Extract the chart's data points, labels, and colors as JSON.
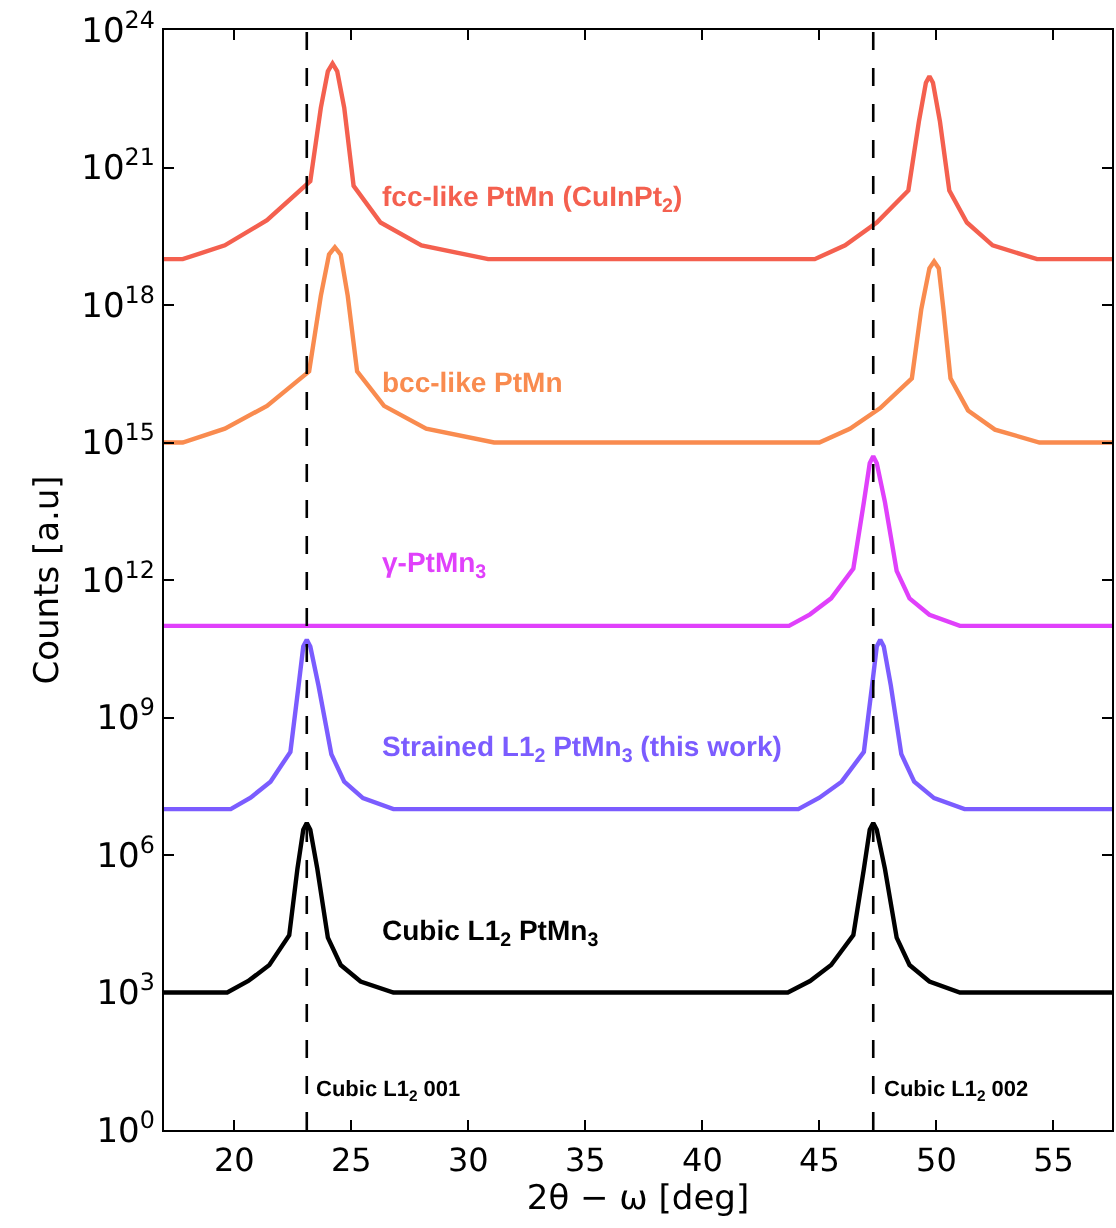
{
  "chart_data": {
    "type": "line",
    "xlabel": "2θ − ω [deg]",
    "ylabel": "Counts [a.u]",
    "log": "y",
    "legend": false,
    "marker": "none",
    "line_style": "solid",
    "xlim": [
      17,
      57.5
    ],
    "xticks": [
      20,
      25,
      30,
      35,
      40,
      45,
      50,
      55
    ],
    "ylim": [
      1,
      1e+24
    ],
    "yticks": [
      {
        "value": 1,
        "label": "10$^{0}$"
      },
      {
        "value": 1000.0,
        "label": "10$^{3}$"
      },
      {
        "value": 1000000.0,
        "label": "10$^{6}$"
      },
      {
        "value": 1000000000.0,
        "label": "10$^{9}$"
      },
      {
        "value": 1000000000000.0,
        "label": "10$^{12}$"
      },
      {
        "value": 1000000000000000.0,
        "label": "10$^{15}$"
      },
      {
        "value": 1e+18,
        "label": "10$^{18}$"
      },
      {
        "value": 1e+21,
        "label": "10$^{21}$"
      },
      {
        "value": 1e+24,
        "label": "10$^{24}$"
      }
    ],
    "series": [
      {
        "name": "fcc-like PtMn (CuInPt$_{2}$)",
        "color": "#f4604f",
        "x": [
          17,
          17.8,
          19.6,
          21.4,
          23.25,
          23.7,
          24.0,
          24.2,
          24.4,
          24.7,
          25.1,
          26.25,
          28.0,
          30.85,
          44.8,
          46.1,
          47.45,
          48.8,
          49.25,
          49.55,
          49.7,
          49.85,
          50.15,
          50.55,
          51.3,
          52.4,
          54.3,
          57.5
        ],
        "values": [
          1e+19,
          1e+19,
          2e+19,
          7.08e+19,
          5.01e+20,
          2e+22,
          1.26e+23,
          1.86e+23,
          1.26e+23,
          2e+22,
          3.98e+20,
          6.31e+19,
          2e+19,
          1e+19,
          1e+19,
          2e+19,
          6.31e+19,
          3.16e+20,
          1e+22,
          7.08e+22,
          9.77e+22,
          7.08e+22,
          1e+22,
          3.16e+20,
          6.31e+19,
          2e+19,
          1e+19,
          1e+19
        ]
      },
      {
        "name": "bcc-like PtMn",
        "color": "#f98b4f",
        "x": [
          17,
          17.8,
          19.6,
          21.4,
          23.2,
          23.7,
          24.05,
          24.3,
          24.55,
          24.85,
          25.25,
          26.4,
          28.2,
          31.1,
          45.0,
          46.3,
          47.6,
          48.95,
          49.35,
          49.7,
          49.9,
          50.1,
          50.3,
          50.6,
          51.35,
          52.5,
          54.4,
          57.5
        ],
        "values": [
          1000000000000000.0,
          1000000000000000.0,
          2000000000000000.0,
          6310000000000000.0,
          3.55e+16,
          1.58e+18,
          1.26e+19,
          1.82e+19,
          1.26e+19,
          1.58e+18,
          3.55e+16,
          6310000000000000.0,
          2000000000000000.0,
          1000000000000000.0,
          1000000000000000.0,
          2000000000000000.0,
          5620000000000000.0,
          2.51e+16,
          7.94e+17,
          6.31e+18,
          8.91e+18,
          6.31e+18,
          7.94e+17,
          2.51e+16,
          5010000000000000.0,
          1910000000000000.0,
          1000000000000000.0,
          1000000000000000.0
        ]
      },
      {
        "name": "γ-PtMn$_{3}$",
        "color": "#e040fb",
        "x": [
          17,
          43.7,
          44.6,
          45.5,
          46.45,
          46.9,
          47.15,
          47.3,
          47.45,
          47.8,
          48.3,
          48.85,
          49.7,
          51.0,
          57.5
        ],
        "values": [
          100000000000.0,
          100000000000.0,
          178000000000.0,
          398000000000.0,
          1780000000000.0,
          50000000000000.0,
          355000000000000.0,
          500000000000000.0,
          355000000000000.0,
          50000000000000.0,
          1580000000000.0,
          398000000000.0,
          174000000000.0,
          100000000000.0,
          100000000000.0
        ]
      },
      {
        "name": "Strained L1$_{2}$ PtMn$_{3}$ (this work)",
        "color": "#7b5cff",
        "x": [
          17,
          19.85,
          20.7,
          21.55,
          22.4,
          22.75,
          22.95,
          23.1,
          23.25,
          23.6,
          24.15,
          24.7,
          25.5,
          26.8,
          44.1,
          45.0,
          45.95,
          46.9,
          47.25,
          47.45,
          47.6,
          47.75,
          48.05,
          48.5,
          49.05,
          49.9,
          51.2,
          57.5
        ],
        "values": [
          10000000.0,
          10000000.0,
          17800000.0,
          39800000.0,
          178000000.0,
          5000000000.0,
          35500000000.0,
          50000000000.0,
          35500000000.0,
          5000000000.0,
          158000000.0,
          39800000.0,
          17400000.0,
          10000000.0,
          10000000.0,
          17800000.0,
          39800000.0,
          178000000.0,
          5000000000.0,
          35500000000.0,
          50000000000.0,
          35500000000.0,
          5000000000.0,
          158000000.0,
          39800000.0,
          17400000.0,
          10000000.0,
          10000000.0
        ]
      },
      {
        "name": "Cubic L1$_{2}$ PtMn$_{3}$",
        "color": "#000000",
        "x": [
          17,
          19.7,
          20.6,
          21.5,
          22.35,
          22.7,
          22.95,
          23.1,
          23.25,
          23.55,
          24.0,
          24.55,
          25.4,
          26.8,
          43.65,
          44.6,
          45.5,
          46.45,
          46.9,
          47.15,
          47.3,
          47.45,
          47.8,
          48.3,
          48.85,
          49.7,
          51.0,
          57.5
        ],
        "values": [
          1000.0,
          1000.0,
          1780.0,
          3980.0,
          17800.0,
          500000.0,
          3550000.0,
          5000000.0,
          3550000.0,
          500000.0,
          15800.0,
          3980.0,
          1740.0,
          1000.0,
          1000.0,
          1780.0,
          3980.0,
          17800.0,
          500000.0,
          3550000.0,
          5000000.0,
          3550000.0,
          500000.0,
          15800.0,
          3980.0,
          1740.0,
          1000.0,
          1000.0
        ]
      }
    ],
    "ref_lines": [
      {
        "axis": "x",
        "value": 23.1,
        "label": "Cubic L1$_{2}$ 001",
        "color": "#000000",
        "line_style": "dashed"
      },
      {
        "axis": "x",
        "value": 47.3,
        "label": "Cubic L1$_{2}$ 002",
        "color": "#000000",
        "line_style": "dashed"
      }
    ]
  }
}
